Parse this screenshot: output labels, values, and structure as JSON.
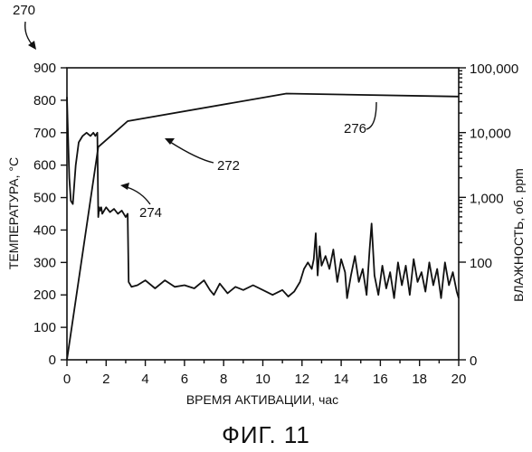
{
  "chart_data": {
    "type": "line",
    "figure_number": "270",
    "caption": "ФИГ. 11",
    "xlabel": "ВРЕМЯ АКТИВАЦИИ, час",
    "ylabel_left": "ТЕМПЕРАТУРА, °C",
    "ylabel_right": "ВЛАЖНОСТЬ, об. ppm",
    "xlim": [
      0,
      20
    ],
    "ylim_left": [
      0,
      900
    ],
    "ylim_right": [
      0,
      100000
    ],
    "right_axis_scale": "log",
    "x_ticks": [
      "0",
      "2",
      "4",
      "6",
      "8",
      "10",
      "12",
      "14",
      "16",
      "18",
      "20"
    ],
    "y_left_ticks": [
      "0",
      "100",
      "200",
      "300",
      "400",
      "500",
      "600",
      "700",
      "800",
      "900"
    ],
    "y_right_ticks": [
      "0",
      "100",
      "1,000",
      "10,000",
      "100,000"
    ],
    "grid": false,
    "series": [
      {
        "axis": "left",
        "x": [
          0,
          0.05,
          0.12,
          0.2,
          0.3,
          0.45,
          0.6,
          0.8,
          1.0,
          1.2,
          1.35,
          1.45,
          1.55,
          1.6,
          1.65,
          1.7,
          1.75,
          1.8,
          2.0,
          2.2,
          2.4,
          2.6,
          2.8,
          3.0,
          3.1,
          3.15,
          3.3,
          3.6,
          4.0,
          4.5,
          5.0,
          5.5,
          6.0,
          6.5,
          7.0,
          7.3,
          7.5,
          7.8,
          8.2,
          8.6,
          9.0,
          9.5,
          10.0,
          10.5,
          11.0,
          11.3,
          11.6,
          11.9,
          12.1,
          12.3,
          12.5,
          12.6,
          12.7,
          12.8,
          12.9,
          13.0,
          13.2,
          13.4,
          13.6,
          13.8,
          14.0,
          14.2,
          14.3,
          14.5,
          14.7,
          14.9,
          15.1,
          15.3,
          15.45,
          15.55,
          15.7,
          15.9,
          16.1,
          16.3,
          16.5,
          16.7,
          16.9,
          17.1,
          17.3,
          17.5,
          17.7,
          17.9,
          18.1,
          18.3,
          18.5,
          18.7,
          18.9,
          19.1,
          19.3,
          19.5,
          19.7,
          19.9,
          20.0
        ],
        "y": [
          810,
          700,
          560,
          490,
          480,
          600,
          670,
          690,
          700,
          690,
          700,
          690,
          700,
          440,
          470,
          460,
          470,
          450,
          470,
          455,
          465,
          450,
          460,
          440,
          450,
          240,
          225,
          230,
          245,
          220,
          245,
          225,
          230,
          220,
          245,
          215,
          200,
          235,
          205,
          225,
          215,
          230,
          215,
          200,
          215,
          195,
          210,
          240,
          280,
          300,
          280,
          310,
          390,
          260,
          350,
          290,
          320,
          280,
          340,
          240,
          310,
          270,
          190,
          260,
          320,
          240,
          280,
          200,
          340,
          420,
          260,
          200,
          290,
          220,
          270,
          190,
          300,
          230,
          290,
          200,
          310,
          240,
          270,
          210,
          300,
          230,
          280,
          190,
          300,
          230,
          270,
          210,
          190
        ]
      },
      {
        "axis": "right",
        "x": [
          0,
          1.6,
          3.1,
          11.2,
          20.0
        ],
        "y": [
          0,
          6000,
          15000,
          40000,
          36000
        ]
      }
    ],
    "annotations": [
      {
        "label": "272"
      },
      {
        "label": "274"
      },
      {
        "label": "276"
      }
    ]
  }
}
